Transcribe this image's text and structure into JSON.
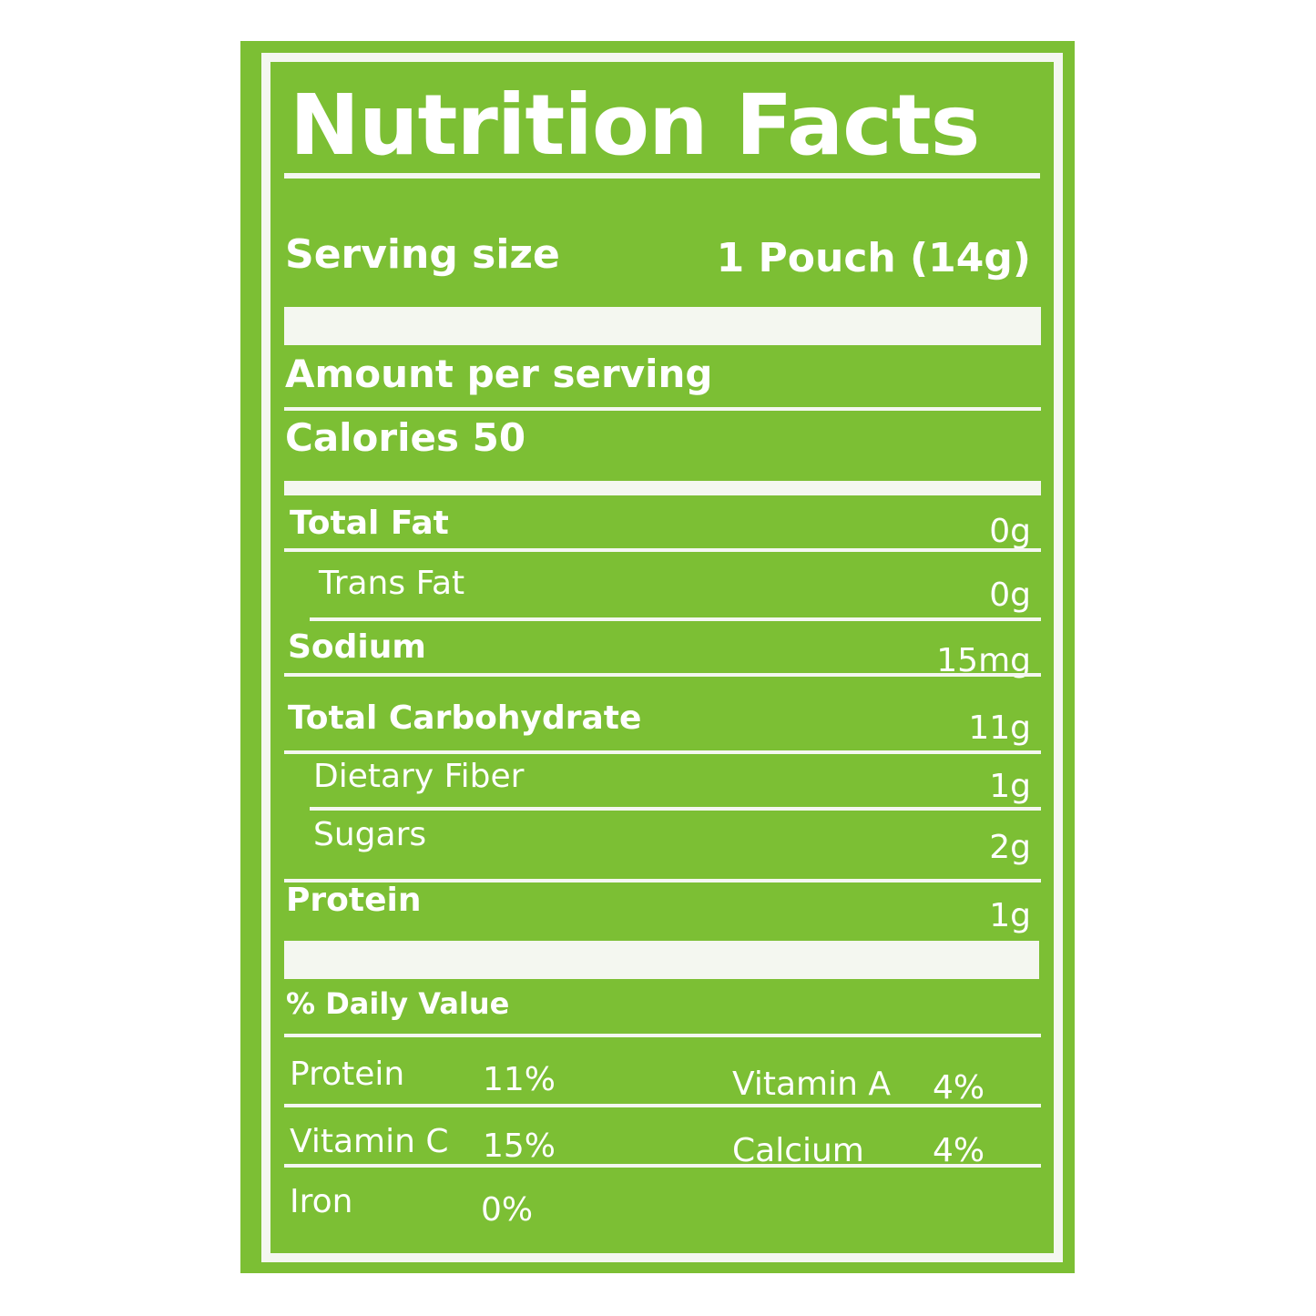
{
  "title": "Nutrition Facts",
  "serving": {
    "label": "Serving size",
    "value": "1 Pouch (14g)"
  },
  "amount_per_serving": "Amount per serving",
  "calories": "Calories 50",
  "nutrients": [
    {
      "label": "Total Fat",
      "value": "0g"
    },
    {
      "label": "Trans Fat",
      "value": "0g"
    },
    {
      "label": "Sodium",
      "value": "15mg"
    },
    {
      "label": "Total Carbohydrate",
      "value": "11g"
    },
    {
      "label": "Dietary Fiber",
      "value": "1g"
    },
    {
      "label": "Sugars",
      "value": "2g"
    },
    {
      "label": "Protein",
      "value": "1g"
    }
  ],
  "daily_value_header": "% Daily Value",
  "daily_values": [
    {
      "label": "Protein",
      "value": "11%"
    },
    {
      "label": "Vitamin A",
      "value": "4%"
    },
    {
      "label": "Vitamin C",
      "value": "15%"
    },
    {
      "label": "Calcium",
      "value": "4%"
    },
    {
      "label": "Iron",
      "value": "0%"
    }
  ],
  "colors": {
    "background": "#7cbf34",
    "text": "#f4f7f0"
  }
}
